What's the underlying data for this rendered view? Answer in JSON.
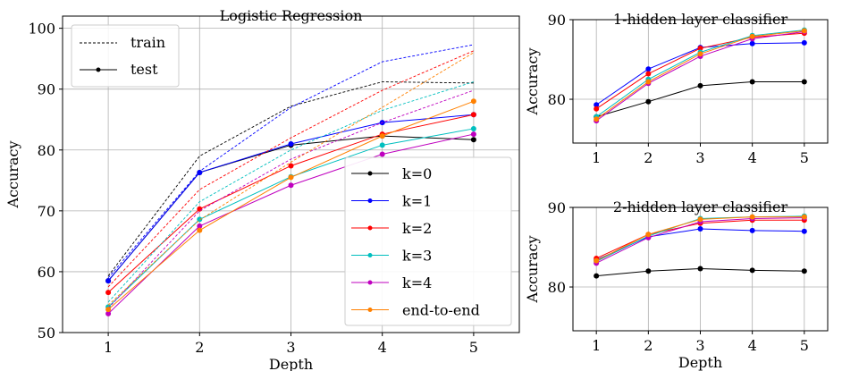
{
  "series_colors": {
    "k=0": "#000000",
    "k=1": "#0000ff",
    "k=2": "#ff0000",
    "k=3": "#00bfbf",
    "k=4": "#bf00bf",
    "end-to-end": "#ff8000"
  },
  "chart_data": [
    {
      "id": "logreg",
      "type": "line",
      "title": "Logistic Regression",
      "xlabel": "Depth",
      "ylabel": "Accuracy",
      "xticks": [
        1,
        2,
        3,
        4,
        5
      ],
      "yticks": [
        50,
        60,
        70,
        80,
        90,
        100
      ],
      "xlim": [
        0.5,
        5.5
      ],
      "ylim": [
        50,
        102
      ],
      "grid": true,
      "style_legend": {
        "placement": "top-left",
        "entries": [
          {
            "label": "train",
            "style": "dashed"
          },
          {
            "label": "test",
            "style": "solid-marker"
          }
        ]
      },
      "series_legend": {
        "placement": "bottom-right",
        "entries": [
          "k=0",
          "k=1",
          "k=2",
          "k=3",
          "k=4",
          "end-to-end"
        ]
      },
      "x": [
        1,
        2,
        3,
        4,
        5
      ],
      "series": [
        {
          "name": "k=0",
          "split": "test",
          "values": [
            58.5,
            76.3,
            80.8,
            82.3,
            81.7
          ]
        },
        {
          "name": "k=0",
          "split": "train",
          "values": [
            59.3,
            79.0,
            87.2,
            91.2,
            91.0
          ]
        },
        {
          "name": "k=1",
          "split": "test",
          "values": [
            58.5,
            76.3,
            81.0,
            84.5,
            85.8
          ]
        },
        {
          "name": "k=1",
          "split": "train",
          "values": [
            59.0,
            76.5,
            87.0,
            94.5,
            97.3
          ]
        },
        {
          "name": "k=2",
          "split": "test",
          "values": [
            56.6,
            70.3,
            77.4,
            82.6,
            85.8
          ]
        },
        {
          "name": "k=2",
          "split": "train",
          "values": [
            57.5,
            73.5,
            82.0,
            89.8,
            96.3
          ]
        },
        {
          "name": "k=3",
          "split": "test",
          "values": [
            54.2,
            68.6,
            75.6,
            80.8,
            83.5
          ]
        },
        {
          "name": "k=3",
          "split": "train",
          "values": [
            55.0,
            71.5,
            80.0,
            86.5,
            91.2
          ]
        },
        {
          "name": "k=4",
          "split": "test",
          "values": [
            53.1,
            67.5,
            74.2,
            79.3,
            82.6
          ]
        },
        {
          "name": "k=4",
          "split": "train",
          "values": [
            54.0,
            70.0,
            78.5,
            84.5,
            89.8
          ]
        },
        {
          "name": "end-to-end",
          "split": "test",
          "values": [
            53.8,
            66.8,
            75.5,
            82.3,
            88.0
          ]
        },
        {
          "name": "end-to-end",
          "split": "train",
          "values": [
            54.5,
            68.5,
            78.0,
            87.0,
            96.0
          ]
        }
      ]
    },
    {
      "id": "h1",
      "type": "line",
      "title": "1-hidden layer classifier",
      "xlabel": "",
      "ylabel": "Accuracy",
      "xticks": [
        1,
        2,
        3,
        4,
        5
      ],
      "yticks": [
        80,
        90
      ],
      "xlim": [
        0.55,
        5.45
      ],
      "ylim": [
        74.5,
        90
      ],
      "grid": true,
      "x": [
        1,
        2,
        3,
        4,
        5
      ],
      "series": [
        {
          "name": "k=0",
          "values": [
            77.8,
            79.7,
            81.7,
            82.2,
            82.2
          ]
        },
        {
          "name": "k=1",
          "values": [
            79.3,
            83.8,
            86.5,
            87.0,
            87.1
          ]
        },
        {
          "name": "k=2",
          "values": [
            78.8,
            83.2,
            86.4,
            87.8,
            88.3
          ]
        },
        {
          "name": "k=3",
          "values": [
            77.8,
            82.5,
            85.9,
            88.0,
            88.7
          ]
        },
        {
          "name": "k=4",
          "values": [
            77.3,
            82.0,
            85.4,
            87.6,
            88.5
          ]
        },
        {
          "name": "end-to-end",
          "values": [
            77.5,
            82.2,
            85.7,
            87.9,
            88.6
          ]
        }
      ]
    },
    {
      "id": "h2",
      "type": "line",
      "title": "2-hidden layer classifier",
      "xlabel": "Depth",
      "ylabel": "Accuracy",
      "xticks": [
        1,
        2,
        3,
        4,
        5
      ],
      "yticks": [
        80,
        90
      ],
      "xlim": [
        0.55,
        5.45
      ],
      "ylim": [
        74.5,
        90
      ],
      "grid": true,
      "x": [
        1,
        2,
        3,
        4,
        5
      ],
      "series": [
        {
          "name": "k=0",
          "values": [
            81.4,
            82.0,
            82.3,
            82.1,
            82.0
          ]
        },
        {
          "name": "k=1",
          "values": [
            83.4,
            86.3,
            87.3,
            87.1,
            87.0
          ]
        },
        {
          "name": "k=2",
          "values": [
            83.6,
            86.6,
            88.0,
            88.4,
            88.4
          ]
        },
        {
          "name": "k=3",
          "values": [
            83.2,
            86.4,
            88.6,
            88.8,
            88.9
          ]
        },
        {
          "name": "k=4",
          "values": [
            83.0,
            86.2,
            88.2,
            88.6,
            88.7
          ]
        },
        {
          "name": "end-to-end",
          "values": [
            83.3,
            86.6,
            88.5,
            88.8,
            88.8
          ]
        }
      ]
    }
  ]
}
